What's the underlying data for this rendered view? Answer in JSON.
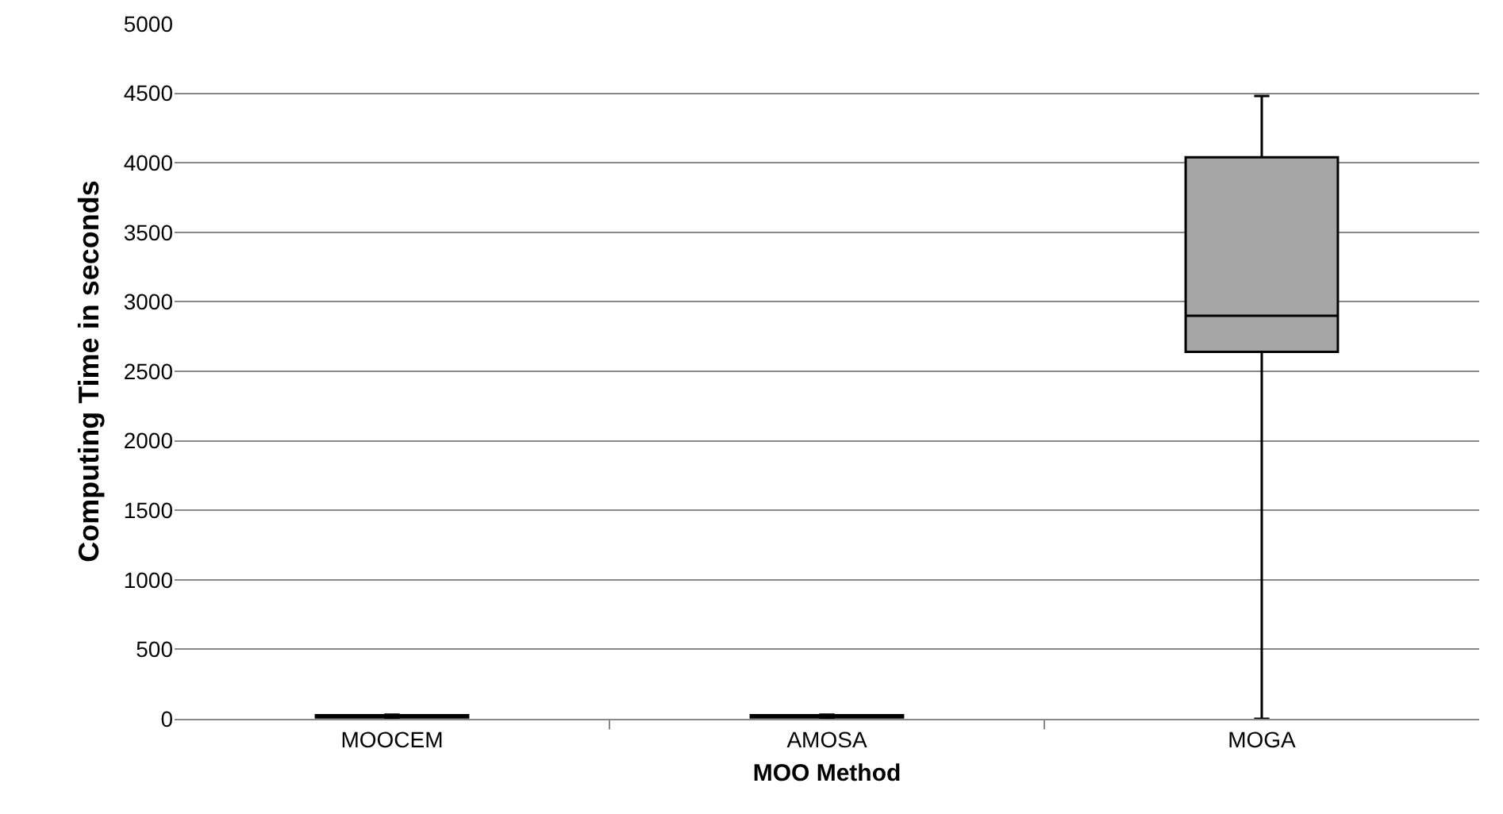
{
  "chart_data": {
    "type": "box",
    "xlabel": "MOO Method",
    "ylabel": "Computing Time in seconds",
    "categories": [
      "MOOCEM",
      "AMOSA",
      "MOGA"
    ],
    "color": "#a6a6a6",
    "boxes": [
      {
        "low": 5,
        "q1": 10,
        "median": 15,
        "q3": 25,
        "high": 30
      },
      {
        "low": 5,
        "q1": 10,
        "median": 15,
        "q3": 25,
        "high": 30
      },
      {
        "low": 0,
        "q1": 2640,
        "median": 2900,
        "q3": 4040,
        "high": 4480
      }
    ],
    "ylim": [
      0,
      5000
    ],
    "yticks": [
      0,
      500,
      1000,
      1500,
      2000,
      2500,
      3000,
      3500,
      4000,
      4500,
      5000
    ],
    "grid": "y"
  }
}
